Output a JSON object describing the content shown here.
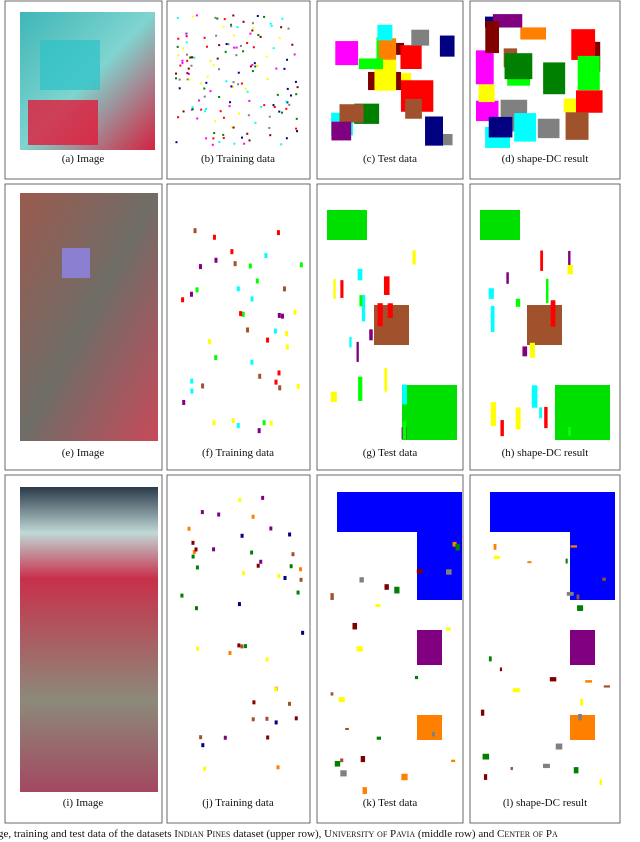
{
  "panels": [
    {
      "caption": "(a)  Image"
    },
    {
      "caption": "(b)  Training data"
    },
    {
      "caption": "(c)  Test data"
    },
    {
      "caption": "(d)  shape-DC result"
    },
    {
      "caption": "(e)  Image"
    },
    {
      "caption": "(f)  Training data"
    },
    {
      "caption": "(g)  Test data"
    },
    {
      "caption": "(h)  shape-DC result"
    },
    {
      "caption": "(i)  Image"
    },
    {
      "caption": "(j)  Training data"
    },
    {
      "caption": "(k)  Test data"
    },
    {
      "caption": "(l)  shape-DC result"
    }
  ],
  "figure_caption": [
    "ge, training and test data of the datasets ",
    "Indian Pines",
    " dataset (upper row), ",
    "University of Pavia",
    " (middle row) and ",
    "Center of Pa"
  ]
}
